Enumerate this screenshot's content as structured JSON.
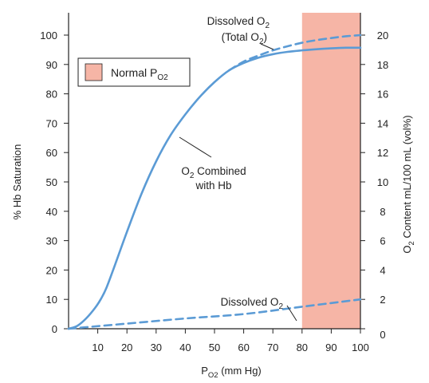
{
  "chart_data": {
    "type": "line",
    "xlabel": {
      "main": "P",
      "sub": "O2",
      "rest": " (mm Hg)"
    },
    "ylabel_left": "% Hb Saturation",
    "ylabel_right": {
      "main": "O",
      "sub": "2",
      "rest": " Content mL/100 mL (vol%)"
    },
    "xlim": [
      0,
      100
    ],
    "ylim_left": [
      0,
      100
    ],
    "ylim_right": [
      0,
      20
    ],
    "x_ticks": [
      "10",
      "20",
      "30",
      "40",
      "50",
      "60",
      "70",
      "80",
      "90",
      "100"
    ],
    "y_ticks_left": [
      "0",
      "10",
      "20",
      "30",
      "40",
      "50",
      "60",
      "70",
      "80",
      "90",
      "100"
    ],
    "y_ticks_right": [
      "0",
      "2",
      "4",
      "6",
      "8",
      "10",
      "12",
      "14",
      "16",
      "18",
      "20"
    ],
    "shaded_region": {
      "x_start": 80,
      "x_end": 100,
      "color": "#f6b5a6"
    },
    "legend": {
      "main": "Normal P",
      "sub": "O2",
      "placement": "top-left",
      "color": "#f6b5a6"
    },
    "series": [
      {
        "style": "solid",
        "x": [
          0,
          3,
          6,
          9,
          11,
          13,
          16,
          20,
          25,
          30,
          35,
          40,
          45,
          50,
          55,
          60,
          65,
          70,
          75,
          80,
          85,
          90,
          95,
          100
        ],
        "y": [
          0,
          1,
          3.5,
          7,
          10,
          14,
          22,
          33,
          46,
          57,
          66,
          73,
          79,
          84,
          88,
          90.5,
          92.3,
          93.5,
          94.3,
          94.8,
          95.2,
          95.5,
          95.7,
          95.7
        ]
      },
      {
        "style": "dashed",
        "x": [
          55,
          60,
          65,
          70,
          75,
          80,
          85,
          90,
          95,
          100
        ],
        "y": [
          88,
          91,
          93,
          94.8,
          96.2,
          97.4,
          98.3,
          99.0,
          99.6,
          100
        ]
      },
      {
        "style": "dashed",
        "x": [
          0,
          20,
          40,
          60,
          80,
          100
        ],
        "y": [
          0,
          0.35,
          0.7,
          1.0,
          1.5,
          2.0
        ]
      }
    ],
    "annotations": [
      {
        "id": "total",
        "line1": {
          "main": "Dissolved O",
          "sub": "2",
          "rest": ""
        },
        "line2": {
          "main": "(Total O",
          "sub": "2",
          "rest": ")"
        }
      },
      {
        "id": "combined",
        "line1": {
          "main": "O",
          "sub": "2",
          "rest": " Combined"
        },
        "line2": {
          "main": "with Hb",
          "sub": "",
          "rest": ""
        }
      },
      {
        "id": "dissolved",
        "line1": {
          "main": "Dissolved O",
          "sub": "2",
          "rest": ""
        }
      }
    ],
    "line_color": "#5b9bd5"
  }
}
